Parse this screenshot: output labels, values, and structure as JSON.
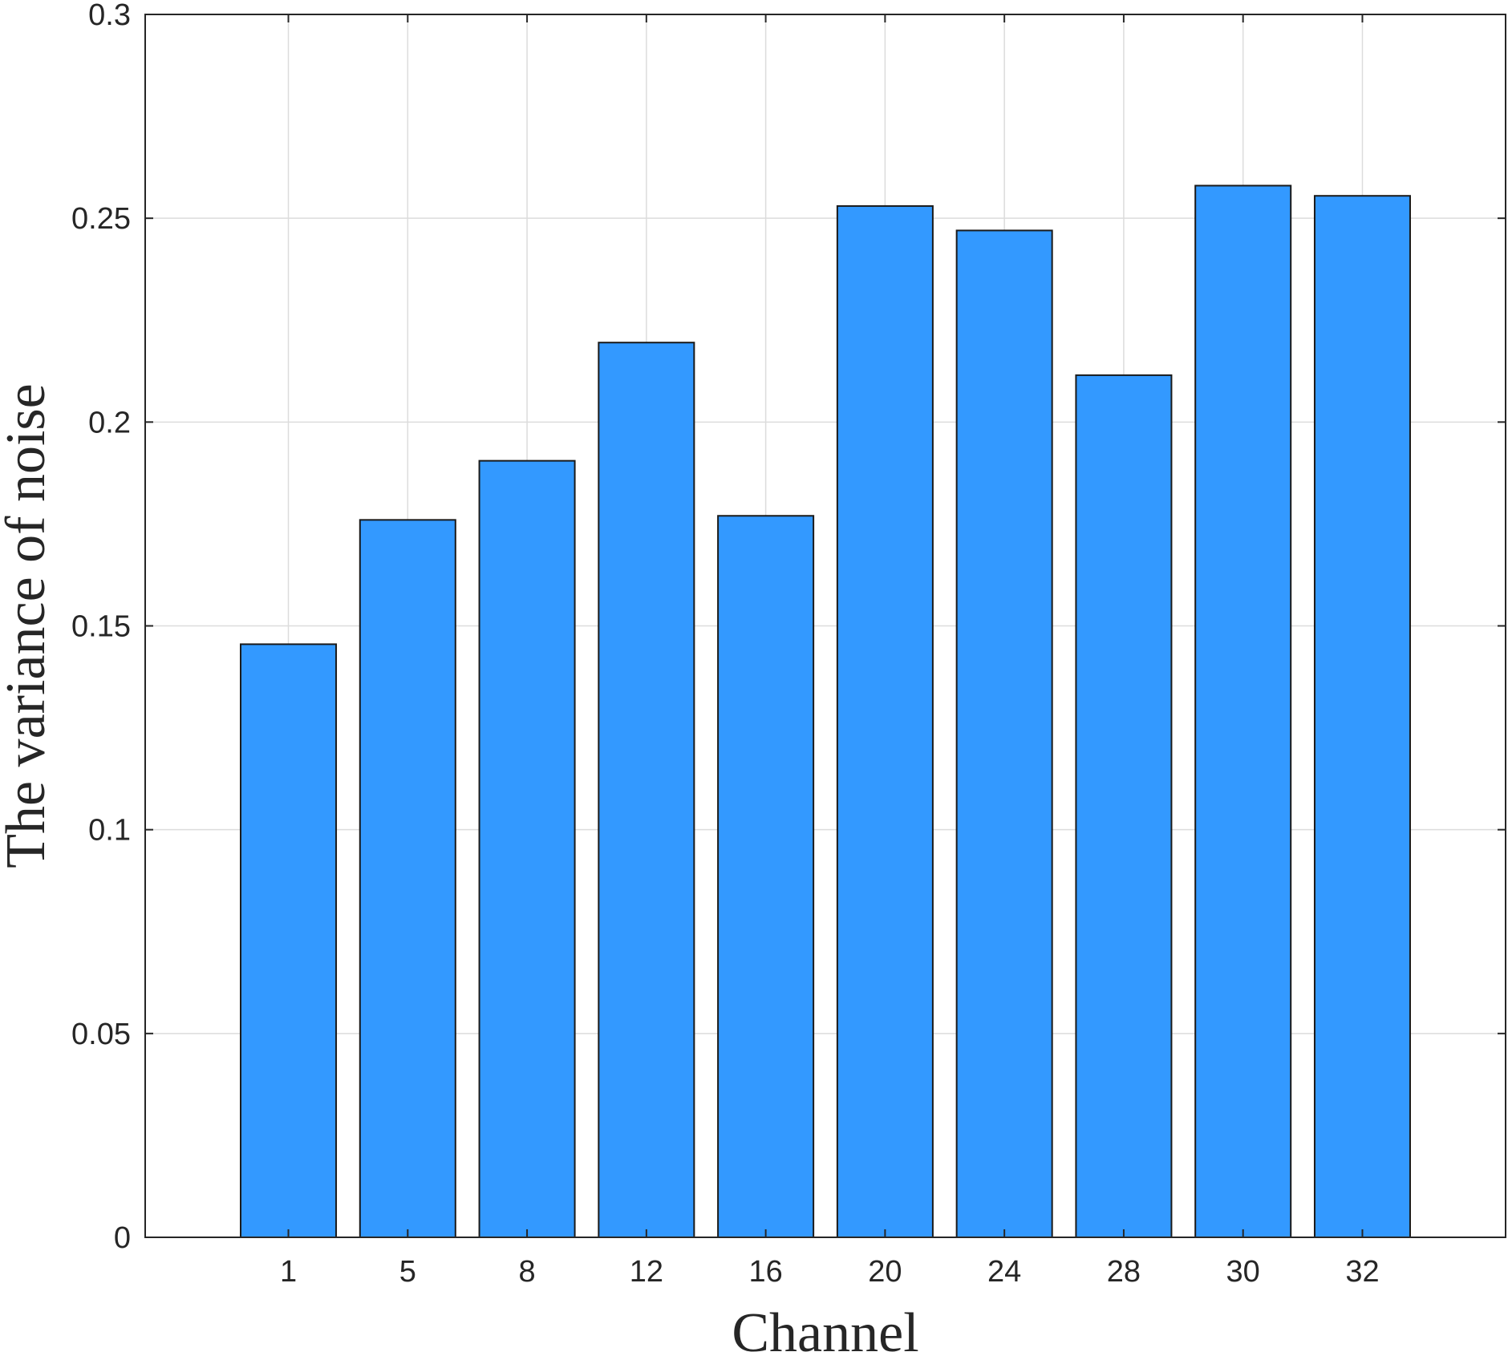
{
  "chart_data": {
    "type": "bar",
    "categories": [
      "1",
      "5",
      "8",
      "12",
      "16",
      "20",
      "24",
      "28",
      "30",
      "32"
    ],
    "values": [
      0.1455,
      0.176,
      0.1905,
      0.2195,
      0.177,
      0.253,
      0.247,
      0.2115,
      0.258,
      0.2555
    ],
    "xlabel": "Channel",
    "ylabel": "The variance of noise",
    "ylim": [
      0,
      0.3
    ],
    "yticks": [
      0,
      0.05,
      0.1,
      0.15,
      0.2,
      0.25,
      0.3
    ],
    "ytick_labels": [
      "0",
      "0.05",
      "0.1",
      "0.15",
      "0.2",
      "0.25",
      "0.3"
    ],
    "grid": true,
    "bar_color": "#3399ff",
    "edge_color": "#1a1a1a"
  }
}
